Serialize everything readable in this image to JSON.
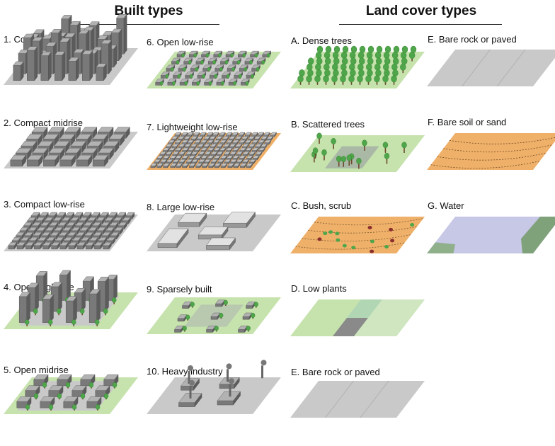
{
  "headings": {
    "built": "Built types",
    "land": "Land cover types"
  },
  "built": [
    "1. Compact high-rise",
    "2. Compact midrise",
    "3. Compact low-rise",
    "4. Open high-rise",
    "5. Open midrise",
    "6. Open low-rise",
    "7. Lightweight low-rise",
    "8. Large low-rise",
    "9. Sparsely built",
    "10. Heavy industry"
  ],
  "land": [
    "A. Dense trees",
    "B. Scattered trees",
    "C. Bush, scrub",
    "D. Low plants",
    "E. Bare rock or paved",
    "E. Bare rock or paved",
    "F. Bare soil or sand",
    "G. Water"
  ],
  "colors": {
    "paved": "#c9c9c9",
    "grass": "#c6e2ad",
    "soil": "#efb06a",
    "water": "#c7c7e6",
    "building": "#8f8f8f",
    "tree": "#4fa64a",
    "trunk": "#6b4a2a"
  }
}
